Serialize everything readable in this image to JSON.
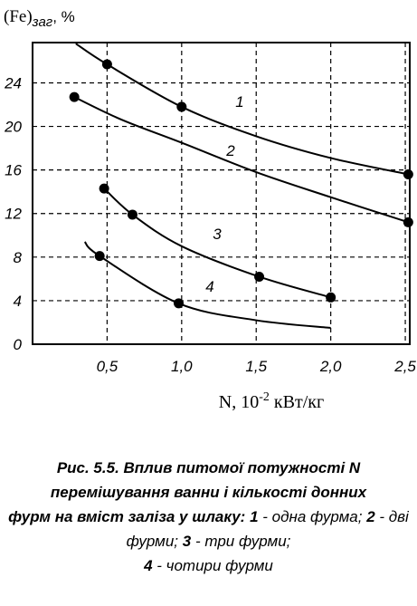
{
  "chart_data": {
    "type": "line",
    "ylabel": {
      "main": "(Fe)",
      "sub": "заг",
      "unit": ", %"
    },
    "xlabel": {
      "main": "N, 10",
      "sup": "-2",
      "unit": " кВт/кг"
    },
    "xlim": [
      0,
      2.53
    ],
    "ylim": [
      0,
      27.7
    ],
    "xticks": [
      {
        "value": 0.5,
        "label": "0,5"
      },
      {
        "value": 1.0,
        "label": "1,0"
      },
      {
        "value": 1.5,
        "label": "1,5"
      },
      {
        "value": 2.0,
        "label": "2,0"
      },
      {
        "value": 2.5,
        "label": "2,5"
      }
    ],
    "yticks": [
      0,
      4,
      8,
      12,
      16,
      20,
      24
    ],
    "grid": true,
    "series": [
      {
        "name": "1",
        "color": "#000000",
        "x": [
          0.29,
          0.5,
          1.0,
          1.5,
          2.0,
          2.52
        ],
        "values": [
          27.6,
          25.7,
          21.8,
          19.1,
          17.1,
          15.6
        ],
        "marker_x": [
          0.5,
          1.0,
          2.52
        ],
        "marker_values": [
          25.7,
          21.8,
          15.6
        ]
      },
      {
        "name": "2",
        "color": "#000000",
        "x": [
          0.28,
          0.6,
          1.0,
          1.5,
          2.0,
          2.52
        ],
        "values": [
          22.7,
          20.6,
          18.5,
          15.8,
          13.5,
          11.2
        ],
        "marker_x": [
          0.28,
          2.52
        ],
        "marker_values": [
          22.7,
          11.2
        ]
      },
      {
        "name": "3",
        "color": "#000000",
        "x": [
          0.48,
          0.67,
          1.0,
          1.52,
          2.0
        ],
        "values": [
          14.3,
          11.9,
          9.0,
          6.2,
          4.3
        ],
        "marker_x": [
          0.48,
          0.67,
          1.52,
          2.0
        ],
        "marker_values": [
          14.3,
          11.9,
          6.2,
          4.3
        ]
      },
      {
        "name": "4",
        "color": "#000000",
        "x": [
          0.35,
          0.45,
          0.98,
          1.5,
          2.0
        ],
        "values": [
          9.4,
          8.1,
          3.75,
          2.2,
          1.5
        ],
        "marker_x": [
          0.45,
          0.98
        ],
        "marker_values": [
          8.1,
          3.75
        ]
      }
    ]
  },
  "caption": {
    "title": [
      "Рис. 5.5. Вплив питомої потужності N",
      "перемішування ванни і кількості донних",
      "фурм на вміст заліза у шлаку:"
    ],
    "items": [
      {
        "num": "1",
        "text": "- одна фурма;"
      },
      {
        "num": "2",
        "text": "- дві фурми;"
      },
      {
        "num": "3",
        "text": "- три фурми;"
      },
      {
        "num": "4",
        "text": "- чотири фурми"
      }
    ]
  }
}
